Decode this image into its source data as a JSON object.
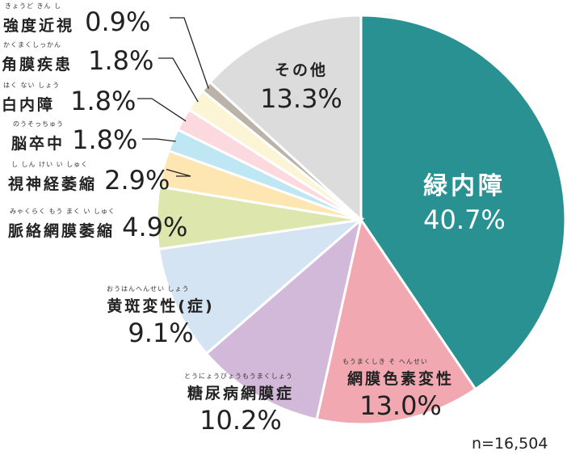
{
  "chart_data": {
    "type": "pie",
    "note": "n=16,504",
    "slices": [
      {
        "label": "緑内障",
        "ruby": "",
        "value": 40.7,
        "value_label": "40.7%",
        "color": "#2a9192"
      },
      {
        "label": "網膜色素変性",
        "ruby": "もうまくしき そ へんせい",
        "value": 13.0,
        "value_label": "13.0%",
        "color": "#f2a8b1"
      },
      {
        "label": "糖尿病網膜症",
        "ruby": "とうにょうびょうもうまくしょう",
        "value": 10.2,
        "value_label": "10.2%",
        "color": "#d2b8d9"
      },
      {
        "label": "黄斑変性(症)",
        "ruby": "おうはんへんせい しょう",
        "value": 9.1,
        "value_label": "9.1%",
        "color": "#d5e4f2"
      },
      {
        "label": "脈絡網膜萎縮",
        "ruby": "みゃくらく もう まく い しゅく",
        "value": 4.9,
        "value_label": "4.9%",
        "color": "#dde6ad"
      },
      {
        "label": "視神経萎縮",
        "ruby": "し しん けい い しゅく",
        "value": 2.9,
        "value_label": "2.9%",
        "color": "#fde6b2"
      },
      {
        "label": "脳卒中",
        "ruby": "のうそっちゅう",
        "value": 1.8,
        "value_label": "1.8%",
        "color": "#bfe6f3"
      },
      {
        "label": "白内障",
        "ruby": "はく ない しょう",
        "value": 1.8,
        "value_label": "1.8%",
        "color": "#fbd9df"
      },
      {
        "label": "角膜疾患",
        "ruby": "かくまくしっかん",
        "value": 1.8,
        "value_label": "1.8%",
        "color": "#fbf5d6"
      },
      {
        "label": "強度近視",
        "ruby": "きょうど きん し",
        "value": 0.9,
        "value_label": "0.9%",
        "color": "#bbb3a8"
      },
      {
        "label": "その他",
        "ruby": "",
        "value": 13.3,
        "value_label": "13.3%",
        "color": "#dcdcdc"
      }
    ]
  }
}
